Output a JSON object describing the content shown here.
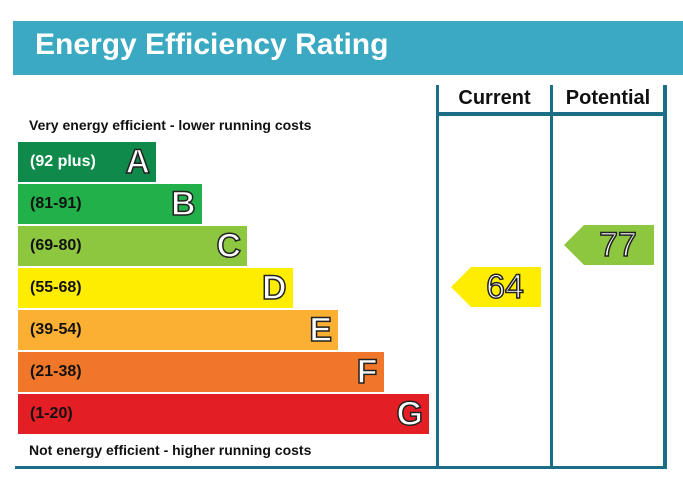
{
  "header": {
    "title": "Energy Efficiency Rating"
  },
  "columns": {
    "current": "Current",
    "potential": "Potential"
  },
  "captions": {
    "top": "Very energy efficient - lower running costs",
    "bottom": "Not energy efficient - higher running costs"
  },
  "colors": {
    "header_bg": "#3aa9c1",
    "frame": "#1c6e86"
  },
  "chart_data": {
    "type": "bar",
    "title": "Energy Efficiency Rating",
    "categories": [
      "A",
      "B",
      "C",
      "D",
      "E",
      "F",
      "G"
    ],
    "bands": [
      {
        "letter": "A",
        "range": "(92 plus)",
        "color": "#0f8a4a",
        "text_color": "#ffffff"
      },
      {
        "letter": "B",
        "range": "(81-91)",
        "color": "#22b04b",
        "text_color": "#111111"
      },
      {
        "letter": "C",
        "range": "(69-80)",
        "color": "#8dc63f",
        "text_color": "#111111"
      },
      {
        "letter": "D",
        "range": "(55-68)",
        "color": "#ffed00",
        "text_color": "#111111"
      },
      {
        "letter": "E",
        "range": "(39-54)",
        "color": "#fbb034",
        "text_color": "#111111"
      },
      {
        "letter": "F",
        "range": "(21-38)",
        "color": "#f0772a",
        "text_color": "#111111"
      },
      {
        "letter": "G",
        "range": "(1-20)",
        "color": "#e31e25",
        "text_color": "#111111"
      }
    ],
    "ratings": [
      {
        "name": "Current",
        "value": 64,
        "band": "D",
        "color": "#ffed00"
      },
      {
        "name": "Potential",
        "value": 77,
        "band": "C",
        "color": "#8dc63f"
      }
    ]
  }
}
